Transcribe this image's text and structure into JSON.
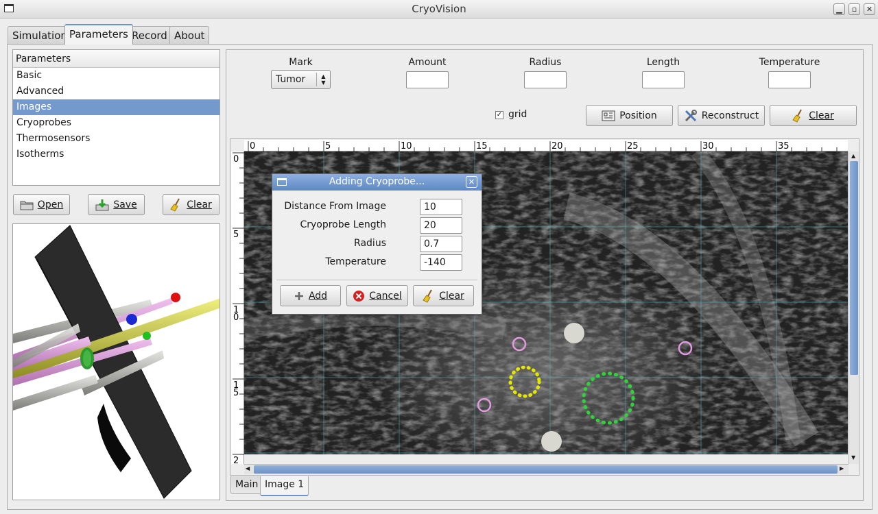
{
  "window": {
    "title": "CryoVision"
  },
  "tabs": [
    "Simulation",
    "Parameters",
    "Record",
    "About"
  ],
  "active_tab": "Parameters",
  "parameters_list": {
    "header": "Parameters",
    "items": [
      "Basic",
      "Advanced",
      "Images",
      "Cryoprobes",
      "Thermosensors",
      "Isotherms"
    ],
    "selected": "Images"
  },
  "left_buttons": {
    "open": "Open",
    "save": "Save",
    "clear": "Clear"
  },
  "fields": {
    "mark_label": "Mark",
    "mark_value": "Tumor",
    "amount_label": "Amount",
    "radius_label": "Radius",
    "length_label": "Length",
    "temperature_label": "Temperature"
  },
  "grid_checkbox": {
    "label": "grid",
    "checked": true
  },
  "action_buttons": {
    "position": "Position",
    "reconstruct": "Reconstruct",
    "clear": "Clear"
  },
  "ruler_h": [
    "0",
    "5",
    "10",
    "15",
    "20",
    "25",
    "30",
    "35"
  ],
  "ruler_v": [
    "0",
    "5",
    "1\n0",
    "1\n5",
    "2"
  ],
  "bottom_tabs": [
    "Main",
    "Image 1"
  ],
  "active_bottom_tab": "Image 1",
  "dialog": {
    "title": "Adding Cryoprobe...",
    "rows": [
      {
        "label": "Distance From Image",
        "value": "10"
      },
      {
        "label": "Cryoprobe Length",
        "value": "20"
      },
      {
        "label": "Radius",
        "value": "0.7"
      },
      {
        "label": "Temperature",
        "value": "-140"
      }
    ],
    "add": "Add",
    "cancel": "Cancel",
    "clear": "Clear"
  },
  "colors": {
    "accent": "#7399cd",
    "probe_pink": "#e39ae0",
    "probe_yellow": "#e4e800",
    "probe_green": "#2fd43a"
  }
}
